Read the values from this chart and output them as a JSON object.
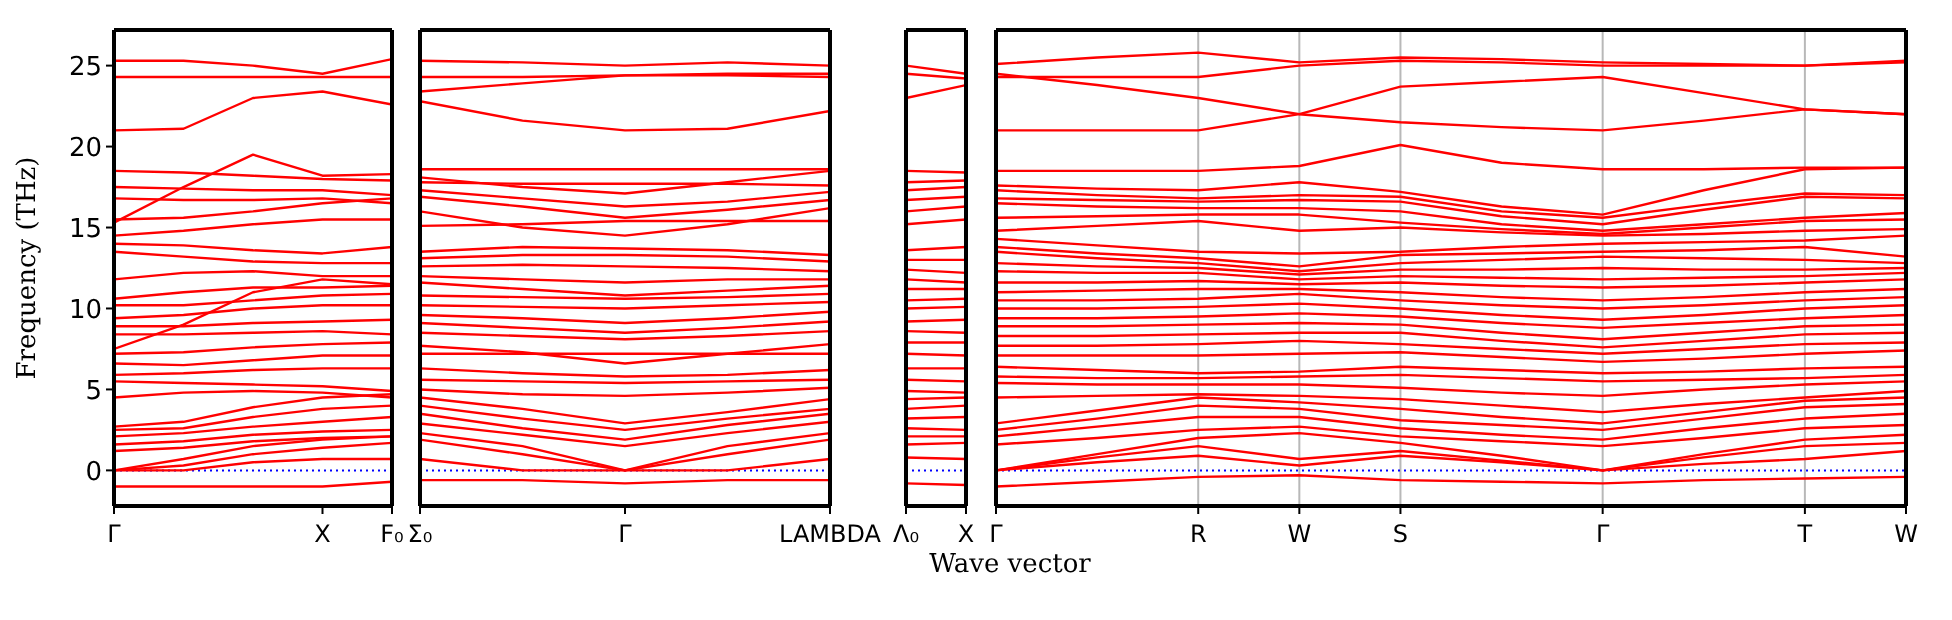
{
  "chart_data": [
    {
      "type": "line",
      "ylabel": "Frequency (THz)",
      "categories": [
        "Γ",
        null,
        null,
        "X",
        "F₀"
      ],
      "ylim": [
        -2.2,
        27.2
      ],
      "yticks": [
        0,
        5,
        10,
        15,
        20,
        25
      ],
      "ref_lines": [
        {
          "axis": "y",
          "value": 0,
          "color": "#0000ff",
          "line_style": "dotted"
        }
      ],
      "series": [
        {
          "color": "#ff0000",
          "values": [
            25.3,
            25.3,
            25.0,
            24.5,
            25.4
          ]
        },
        {
          "color": "#ff0000",
          "values": [
            24.3,
            24.3,
            24.3,
            24.3,
            24.3
          ]
        },
        {
          "color": "#ff0000",
          "values": [
            21.0,
            21.1,
            23.0,
            23.4,
            22.6
          ]
        },
        {
          "color": "#ff0000",
          "values": [
            15.3,
            17.5,
            19.5,
            18.2,
            18.3
          ]
        },
        {
          "color": "#ff0000",
          "values": [
            18.5,
            18.4,
            18.2,
            18.0,
            17.9
          ]
        },
        {
          "color": "#ff0000",
          "values": [
            17.5,
            17.4,
            17.3,
            17.3,
            17.0
          ]
        },
        {
          "color": "#ff0000",
          "values": [
            16.8,
            16.7,
            16.7,
            16.8,
            16.5
          ]
        },
        {
          "color": "#ff0000",
          "values": [
            15.5,
            15.6,
            16.0,
            16.5,
            16.8
          ]
        },
        {
          "color": "#ff0000",
          "values": [
            14.5,
            14.8,
            15.2,
            15.5,
            15.5
          ]
        },
        {
          "color": "#ff0000",
          "values": [
            14.0,
            13.9,
            13.6,
            13.4,
            13.8
          ]
        },
        {
          "color": "#ff0000",
          "values": [
            13.5,
            13.2,
            12.9,
            12.8,
            12.8
          ]
        },
        {
          "color": "#ff0000",
          "values": [
            11.8,
            12.2,
            12.3,
            12.0,
            12.0
          ]
        },
        {
          "color": "#ff0000",
          "values": [
            10.6,
            11.0,
            11.3,
            11.3,
            11.4
          ]
        },
        {
          "color": "#ff0000",
          "values": [
            10.2,
            10.2,
            10.5,
            10.8,
            10.9
          ]
        },
        {
          "color": "#ff0000",
          "values": [
            9.4,
            9.6,
            10.0,
            10.2,
            10.2
          ]
        },
        {
          "color": "#ff0000",
          "values": [
            8.9,
            8.9,
            9.1,
            9.2,
            9.3
          ]
        },
        {
          "color": "#ff0000",
          "values": [
            8.4,
            8.4,
            8.5,
            8.6,
            8.4
          ]
        },
        {
          "color": "#ff0000",
          "values": [
            7.5,
            9.0,
            11.0,
            11.8,
            11.5
          ]
        },
        {
          "color": "#ff0000",
          "values": [
            7.2,
            7.3,
            7.6,
            7.8,
            7.9
          ]
        },
        {
          "color": "#ff0000",
          "values": [
            6.6,
            6.5,
            6.8,
            7.1,
            7.1
          ]
        },
        {
          "color": "#ff0000",
          "values": [
            5.9,
            6.0,
            6.2,
            6.3,
            6.3
          ]
        },
        {
          "color": "#ff0000",
          "values": [
            5.5,
            5.4,
            5.3,
            5.2,
            4.9
          ]
        },
        {
          "color": "#ff0000",
          "values": [
            4.5,
            4.8,
            4.9,
            4.8,
            4.5
          ]
        },
        {
          "color": "#ff0000",
          "values": [
            2.7,
            3.0,
            3.9,
            4.5,
            4.7
          ]
        },
        {
          "color": "#ff0000",
          "values": [
            2.5,
            2.6,
            3.3,
            3.8,
            4.0
          ]
        },
        {
          "color": "#ff0000",
          "values": [
            2.1,
            2.3,
            2.7,
            3.0,
            3.3
          ]
        },
        {
          "color": "#ff0000",
          "values": [
            1.6,
            1.8,
            2.2,
            2.4,
            2.5
          ]
        },
        {
          "color": "#ff0000",
          "values": [
            1.2,
            1.4,
            1.8,
            2.0,
            2.1
          ]
        },
        {
          "color": "#ff0000",
          "values": [
            0,
            0.3,
            1.0,
            1.4,
            1.7
          ]
        },
        {
          "color": "#ff0000",
          "values": [
            0,
            0.7,
            1.5,
            1.9,
            2.1
          ]
        },
        {
          "color": "#ff0000",
          "values": [
            0,
            0,
            0.5,
            0.7,
            0.7
          ]
        },
        {
          "color": "#ff0000",
          "values": [
            -1.0,
            -1.0,
            -1.0,
            -1.0,
            -0.7
          ]
        }
      ]
    },
    {
      "type": "line",
      "categories": [
        "Σ₀",
        null,
        "Γ",
        null,
        "LAMBDA"
      ],
      "ylim": [
        -2.2,
        27.2
      ],
      "yticks": [
        0,
        5,
        10,
        15,
        20,
        25
      ],
      "tick_labels": "x",
      "ref_lines": [
        {
          "axis": "y",
          "value": 0,
          "color": "#0000ff",
          "line_style": "dotted"
        }
      ],
      "series": [
        {
          "color": "#ff0000",
          "values": [
            25.3,
            25.2,
            25.0,
            25.2,
            25.0
          ]
        },
        {
          "color": "#ff0000",
          "values": [
            24.3,
            24.3,
            24.4,
            24.4,
            24.3
          ]
        },
        {
          "color": "#ff0000",
          "values": [
            23.4,
            23.9,
            24.4,
            24.5,
            24.5
          ]
        },
        {
          "color": "#ff0000",
          "values": [
            22.8,
            21.6,
            21.0,
            21.1,
            22.2
          ]
        },
        {
          "color": "#ff0000",
          "values": [
            18.6,
            18.6,
            18.6,
            18.6,
            18.6
          ]
        },
        {
          "color": "#ff0000",
          "values": [
            18.1,
            17.5,
            17.1,
            17.8,
            18.5
          ]
        },
        {
          "color": "#ff0000",
          "values": [
            17.8,
            17.7,
            17.7,
            17.7,
            17.6
          ]
        },
        {
          "color": "#ff0000",
          "values": [
            17.3,
            16.8,
            16.3,
            16.6,
            17.2
          ]
        },
        {
          "color": "#ff0000",
          "values": [
            16.9,
            16.3,
            15.6,
            16.1,
            16.7
          ]
        },
        {
          "color": "#ff0000",
          "values": [
            16.0,
            15.0,
            14.5,
            15.2,
            16.2
          ]
        },
        {
          "color": "#ff0000",
          "values": [
            15.1,
            15.2,
            15.4,
            15.4,
            15.4
          ]
        },
        {
          "color": "#ff0000",
          "values": [
            13.5,
            13.8,
            13.7,
            13.6,
            13.3
          ]
        },
        {
          "color": "#ff0000",
          "values": [
            13.1,
            13.3,
            13.3,
            13.2,
            12.9
          ]
        },
        {
          "color": "#ff0000",
          "values": [
            12.6,
            12.7,
            12.6,
            12.5,
            12.3
          ]
        },
        {
          "color": "#ff0000",
          "values": [
            12.0,
            11.8,
            11.6,
            11.8,
            11.8
          ]
        },
        {
          "color": "#ff0000",
          "values": [
            11.6,
            11.2,
            10.8,
            11.1,
            11.4
          ]
        },
        {
          "color": "#ff0000",
          "values": [
            10.8,
            10.7,
            10.6,
            10.7,
            10.9
          ]
        },
        {
          "color": "#ff0000",
          "values": [
            10.2,
            10.1,
            10.0,
            10.2,
            10.4
          ]
        },
        {
          "color": "#ff0000",
          "values": [
            9.6,
            9.4,
            9.1,
            9.4,
            9.8
          ]
        },
        {
          "color": "#ff0000",
          "values": [
            9.1,
            8.8,
            8.5,
            8.8,
            9.2
          ]
        },
        {
          "color": "#ff0000",
          "values": [
            8.5,
            8.3,
            8.1,
            8.3,
            8.6
          ]
        },
        {
          "color": "#ff0000",
          "values": [
            7.7,
            7.3,
            6.6,
            7.2,
            7.8
          ]
        },
        {
          "color": "#ff0000",
          "values": [
            7.2,
            7.2,
            7.2,
            7.2,
            7.2
          ]
        },
        {
          "color": "#ff0000",
          "values": [
            6.3,
            6.0,
            5.8,
            5.9,
            6.2
          ]
        },
        {
          "color": "#ff0000",
          "values": [
            5.6,
            5.5,
            5.4,
            5.5,
            5.6
          ]
        },
        {
          "color": "#ff0000",
          "values": [
            5.0,
            4.7,
            4.6,
            4.8,
            5.1
          ]
        },
        {
          "color": "#ff0000",
          "values": [
            4.5,
            3.8,
            2.9,
            3.6,
            4.4
          ]
        },
        {
          "color": "#ff0000",
          "values": [
            4.0,
            3.2,
            2.5,
            3.2,
            3.8
          ]
        },
        {
          "color": "#ff0000",
          "values": [
            3.5,
            2.6,
            1.9,
            2.8,
            3.5
          ]
        },
        {
          "color": "#ff0000",
          "values": [
            2.9,
            2.2,
            1.5,
            2.3,
            3.0
          ]
        },
        {
          "color": "#ff0000",
          "values": [
            2.3,
            1.5,
            0,
            1.5,
            2.3
          ]
        },
        {
          "color": "#ff0000",
          "values": [
            1.9,
            1.0,
            0,
            1.0,
            1.9
          ]
        },
        {
          "color": "#ff0000",
          "values": [
            0.7,
            0,
            0,
            0,
            0.7
          ]
        },
        {
          "color": "#ff0000",
          "values": [
            -0.6,
            -0.6,
            -0.8,
            -0.6,
            -0.6
          ]
        }
      ]
    },
    {
      "type": "line",
      "xlabel": "Wave vector",
      "categories": [
        "Λ₀",
        "X"
      ],
      "ylim": [
        -2.2,
        27.2
      ],
      "yticks": [
        0,
        5,
        10,
        15,
        20,
        25
      ],
      "tick_labels": "x",
      "ref_lines": [
        {
          "axis": "y",
          "value": 0,
          "color": "#0000ff",
          "line_style": "dotted"
        }
      ],
      "series": [
        {
          "color": "#ff0000",
          "values": [
            25.0,
            24.5
          ]
        },
        {
          "color": "#ff0000",
          "values": [
            24.5,
            24.2
          ]
        },
        {
          "color": "#ff0000",
          "values": [
            23.0,
            23.8
          ]
        },
        {
          "color": "#ff0000",
          "values": [
            18.5,
            18.4
          ]
        },
        {
          "color": "#ff0000",
          "values": [
            17.8,
            17.9
          ]
        },
        {
          "color": "#ff0000",
          "values": [
            17.3,
            17.5
          ]
        },
        {
          "color": "#ff0000",
          "values": [
            16.7,
            16.9
          ]
        },
        {
          "color": "#ff0000",
          "values": [
            16.0,
            16.3
          ]
        },
        {
          "color": "#ff0000",
          "values": [
            15.2,
            15.5
          ]
        },
        {
          "color": "#ff0000",
          "values": [
            13.6,
            13.8
          ]
        },
        {
          "color": "#ff0000",
          "values": [
            13.0,
            13.0
          ]
        },
        {
          "color": "#ff0000",
          "values": [
            12.4,
            12.2
          ]
        },
        {
          "color": "#ff0000",
          "values": [
            11.8,
            11.6
          ]
        },
        {
          "color": "#ff0000",
          "values": [
            11.2,
            11.2
          ]
        },
        {
          "color": "#ff0000",
          "values": [
            10.5,
            10.6
          ]
        },
        {
          "color": "#ff0000",
          "values": [
            10.0,
            10.1
          ]
        },
        {
          "color": "#ff0000",
          "values": [
            9.2,
            9.3
          ]
        },
        {
          "color": "#ff0000",
          "values": [
            8.6,
            8.5
          ]
        },
        {
          "color": "#ff0000",
          "values": [
            7.9,
            7.9
          ]
        },
        {
          "color": "#ff0000",
          "values": [
            7.2,
            7.1
          ]
        },
        {
          "color": "#ff0000",
          "values": [
            6.3,
            6.3
          ]
        },
        {
          "color": "#ff0000",
          "values": [
            5.6,
            5.5
          ]
        },
        {
          "color": "#ff0000",
          "values": [
            4.9,
            4.8
          ]
        },
        {
          "color": "#ff0000",
          "values": [
            4.4,
            4.5
          ]
        },
        {
          "color": "#ff0000",
          "values": [
            3.8,
            4.0
          ]
        },
        {
          "color": "#ff0000",
          "values": [
            3.2,
            3.3
          ]
        },
        {
          "color": "#ff0000",
          "values": [
            2.6,
            2.5
          ]
        },
        {
          "color": "#ff0000",
          "values": [
            2.1,
            2.1
          ]
        },
        {
          "color": "#ff0000",
          "values": [
            1.6,
            1.7
          ]
        },
        {
          "color": "#ff0000",
          "values": [
            0.8,
            0.7
          ]
        },
        {
          "color": "#ff0000",
          "values": [
            -0.8,
            -0.9
          ]
        }
      ]
    },
    {
      "type": "line",
      "categories": [
        "Γ",
        null,
        "R",
        "W",
        "S",
        null,
        "Γ",
        null,
        "T",
        "W"
      ],
      "ylim": [
        -2.2,
        27.2
      ],
      "yticks": [
        0,
        5,
        10,
        15,
        20,
        25
      ],
      "tick_labels": "x",
      "grid": "x",
      "ref_lines": [
        {
          "axis": "y",
          "value": 0,
          "color": "#0000ff",
          "line_style": "dotted"
        }
      ],
      "series": [
        {
          "color": "#ff0000",
          "values": [
            25.1,
            25.5,
            25.8,
            25.2,
            25.5,
            25.4,
            25.2,
            25.1,
            25.0,
            25.3
          ]
        },
        {
          "color": "#ff0000",
          "values": [
            24.3,
            24.3,
            24.3,
            25.0,
            25.3,
            25.2,
            25.0,
            25.0,
            25.0,
            25.2
          ]
        },
        {
          "color": "#ff0000",
          "values": [
            24.5,
            23.8,
            23.0,
            22.0,
            21.5,
            21.2,
            21.0,
            21.6,
            22.3,
            22.0
          ]
        },
        {
          "color": "#ff0000",
          "values": [
            21.0,
            21.0,
            21.0,
            22.0,
            23.7,
            24.0,
            24.3,
            23.3,
            22.3,
            22.0
          ]
        },
        {
          "color": "#ff0000",
          "values": [
            18.5,
            18.5,
            18.5,
            18.8,
            20.1,
            19.0,
            18.6,
            18.6,
            18.7,
            18.7
          ]
        },
        {
          "color": "#ff0000",
          "values": [
            17.6,
            17.4,
            17.3,
            17.8,
            17.2,
            16.3,
            15.8,
            17.3,
            18.6,
            18.7
          ]
        },
        {
          "color": "#ff0000",
          "values": [
            17.3,
            17.0,
            16.8,
            17.0,
            16.9,
            16.0,
            15.6,
            16.4,
            17.1,
            17.0
          ]
        },
        {
          "color": "#ff0000",
          "values": [
            16.8,
            16.7,
            16.6,
            16.7,
            16.6,
            15.7,
            15.2,
            16.1,
            16.9,
            16.8
          ]
        },
        {
          "color": "#ff0000",
          "values": [
            16.5,
            16.3,
            16.2,
            16.2,
            16.0,
            15.2,
            14.8,
            15.2,
            15.6,
            15.9
          ]
        },
        {
          "color": "#ff0000",
          "values": [
            15.6,
            15.7,
            15.8,
            15.8,
            15.3,
            14.9,
            14.6,
            15.0,
            15.4,
            15.5
          ]
        },
        {
          "color": "#ff0000",
          "values": [
            14.8,
            15.1,
            15.4,
            14.8,
            15.0,
            14.7,
            14.5,
            14.6,
            14.8,
            14.9
          ]
        },
        {
          "color": "#ff0000",
          "values": [
            14.3,
            13.9,
            13.5,
            13.4,
            13.5,
            13.8,
            14.0,
            14.1,
            14.2,
            14.5
          ]
        },
        {
          "color": "#ff0000",
          "values": [
            13.8,
            13.4,
            13.1,
            12.6,
            13.3,
            13.4,
            13.5,
            13.6,
            13.8,
            13.2
          ]
        },
        {
          "color": "#ff0000",
          "values": [
            13.5,
            13.1,
            12.8,
            12.3,
            12.8,
            13.0,
            13.2,
            13.1,
            13.0,
            12.8
          ]
        },
        {
          "color": "#ff0000",
          "values": [
            12.8,
            12.6,
            12.5,
            12.1,
            12.4,
            12.4,
            12.5,
            12.4,
            12.4,
            12.5
          ]
        },
        {
          "color": "#ff0000",
          "values": [
            12.3,
            12.2,
            12.2,
            11.8,
            12.0,
            11.9,
            11.8,
            11.9,
            12.0,
            12.2
          ]
        },
        {
          "color": "#ff0000",
          "values": [
            11.6,
            11.6,
            11.7,
            11.5,
            11.6,
            11.4,
            11.3,
            11.4,
            11.6,
            11.8
          ]
        },
        {
          "color": "#ff0000",
          "values": [
            11.0,
            11.1,
            11.2,
            11.2,
            11.0,
            10.7,
            10.5,
            10.7,
            11.0,
            11.2
          ]
        },
        {
          "color": "#ff0000",
          "values": [
            10.5,
            10.5,
            10.6,
            10.9,
            10.5,
            10.2,
            10.0,
            10.2,
            10.5,
            10.7
          ]
        },
        {
          "color": "#ff0000",
          "values": [
            10.0,
            10.0,
            10.1,
            10.3,
            10.0,
            9.6,
            9.3,
            9.6,
            10.0,
            10.2
          ]
        },
        {
          "color": "#ff0000",
          "values": [
            9.4,
            9.4,
            9.5,
            9.7,
            9.5,
            9.1,
            8.8,
            9.1,
            9.4,
            9.6
          ]
        },
        {
          "color": "#ff0000",
          "values": [
            8.9,
            8.9,
            9.0,
            9.1,
            9.0,
            8.5,
            8.1,
            8.5,
            8.9,
            9.0
          ]
        },
        {
          "color": "#ff0000",
          "values": [
            8.3,
            8.3,
            8.4,
            8.5,
            8.5,
            8.0,
            7.6,
            8.0,
            8.4,
            8.5
          ]
        },
        {
          "color": "#ff0000",
          "values": [
            7.7,
            7.7,
            7.8,
            8.0,
            7.8,
            7.5,
            7.2,
            7.5,
            7.8,
            7.9
          ]
        },
        {
          "color": "#ff0000",
          "values": [
            7.1,
            7.1,
            7.1,
            7.2,
            7.3,
            7.0,
            6.7,
            6.9,
            7.2,
            7.4
          ]
        },
        {
          "color": "#ff0000",
          "values": [
            6.4,
            6.2,
            6.0,
            6.1,
            6.4,
            6.2,
            6.0,
            6.1,
            6.3,
            6.4
          ]
        },
        {
          "color": "#ff0000",
          "values": [
            5.8,
            5.7,
            5.7,
            5.8,
            5.9,
            5.7,
            5.5,
            5.6,
            5.7,
            5.9
          ]
        },
        {
          "color": "#ff0000",
          "values": [
            5.4,
            5.3,
            5.3,
            5.3,
            5.1,
            4.8,
            4.6,
            5.0,
            5.3,
            5.5
          ]
        },
        {
          "color": "#ff0000",
          "values": [
            4.5,
            4.6,
            4.7,
            4.6,
            4.4,
            4.0,
            3.6,
            4.1,
            4.5,
            4.9
          ]
        },
        {
          "color": "#ff0000",
          "values": [
            2.9,
            3.7,
            4.5,
            4.2,
            3.8,
            3.3,
            2.9,
            3.6,
            4.3,
            4.5
          ]
        },
        {
          "color": "#ff0000",
          "values": [
            2.5,
            3.2,
            4.0,
            3.8,
            3.1,
            2.8,
            2.5,
            3.2,
            3.9,
            4.1
          ]
        },
        {
          "color": "#ff0000",
          "values": [
            2.1,
            2.7,
            3.3,
            3.3,
            2.6,
            2.2,
            1.9,
            2.6,
            3.2,
            3.5
          ]
        },
        {
          "color": "#ff0000",
          "values": [
            1.6,
            2.0,
            2.5,
            2.7,
            2.1,
            1.8,
            1.5,
            2.0,
            2.6,
            2.8
          ]
        },
        {
          "color": "#ff0000",
          "values": [
            0,
            1.0,
            2.0,
            2.3,
            1.7,
            0.9,
            0,
            1.0,
            1.9,
            2.2
          ]
        },
        {
          "color": "#ff0000",
          "values": [
            0,
            0.8,
            1.5,
            0.7,
            1.2,
            0.6,
            0,
            0.8,
            1.5,
            1.7
          ]
        },
        {
          "color": "#ff0000",
          "values": [
            0,
            0.5,
            0.9,
            0.3,
            0.9,
            0.5,
            0,
            0.4,
            0.7,
            1.2
          ]
        },
        {
          "color": "#ff0000",
          "values": [
            -1.0,
            -0.7,
            -0.4,
            -0.3,
            -0.6,
            -0.7,
            -0.8,
            -0.6,
            -0.5,
            -0.4
          ]
        }
      ]
    }
  ]
}
